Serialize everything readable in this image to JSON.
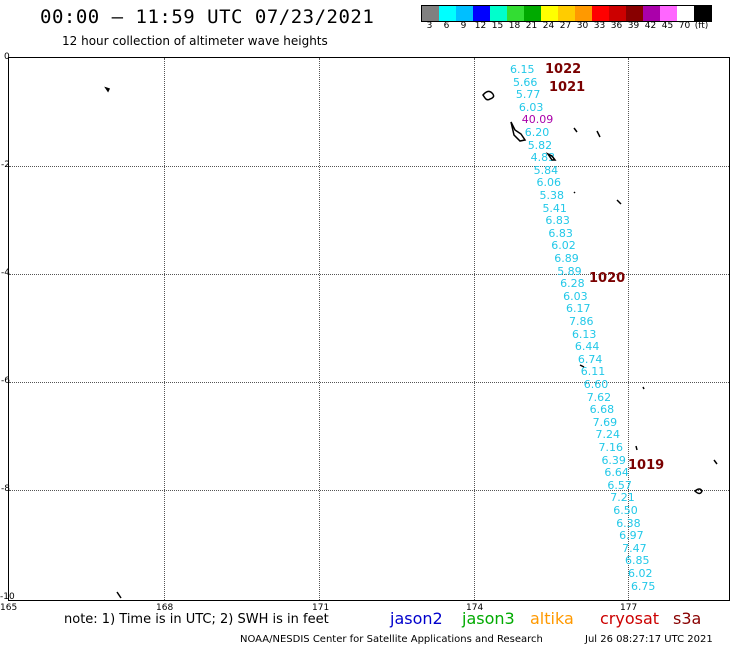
{
  "header": {
    "title": "00:00 – 11:59 UTC 07/23/2021",
    "subtitle": "12 hour collection of altimeter wave heights"
  },
  "legend": {
    "colors": [
      "#808080",
      "#00ffff",
      "#00bfff",
      "#0000ff",
      "#00ffcc",
      "#33dd33",
      "#00aa00",
      "#ffff00",
      "#ffcc00",
      "#ff9900",
      "#ff0000",
      "#cc0000",
      "#880000",
      "#aa00aa",
      "#ff66ff",
      "#ffffff",
      "#000000"
    ],
    "labels": [
      "3",
      "6",
      "9",
      "12",
      "15",
      "18",
      "21",
      "24",
      "27",
      "30",
      "33",
      "36",
      "39",
      "42",
      "45",
      "70",
      "(ft)"
    ]
  },
  "map": {
    "lat_labels": [
      "0",
      "-2",
      "-4",
      "-6",
      "-8",
      "-10"
    ],
    "lon_labels": [
      "165",
      "168",
      "171",
      "174",
      "177"
    ],
    "wave_heights": [
      "6.15",
      "5.66",
      "5.77",
      "6.03",
      "40.09",
      "6.20",
      "5.82",
      "4.83",
      "5.84",
      "6.06",
      "5.38",
      "5.41",
      "6.83",
      "6.83",
      "6.02",
      "6.89",
      "5.89",
      "6.28",
      "6.03",
      "6.17",
      "7.86",
      "6.13",
      "6.44",
      "6.74",
      "6.11",
      "6.60",
      "7.62",
      "6.68",
      "7.69",
      "7.24",
      "7.16",
      "6.39",
      "6.64",
      "6.57",
      "7.21",
      "6.50",
      "6.38",
      "6.97",
      "7.47",
      "6.85",
      "6.02",
      "6.75"
    ],
    "highlight_color": "#aa00aa",
    "wave_color": "#22c8e8",
    "pressure_labels": [
      "1022",
      "1021",
      "1020",
      "1019"
    ],
    "pressure_color": "#7a0000"
  },
  "note": "note: 1) Time is in UTC; 2) SWH is in feet",
  "satellites": [
    {
      "name": "jason2",
      "color": "#0000cc"
    },
    {
      "name": "jason3",
      "color": "#00aa00"
    },
    {
      "name": "altika",
      "color": "#ff9900"
    },
    {
      "name": "cryosat",
      "color": "#cc0000"
    },
    {
      "name": "s3a",
      "color": "#880000"
    }
  ],
  "footer": {
    "credit": "NOAA/NESDIS Center for Satellite Applications and Research",
    "timestamp": "Jul 26 08:27:17 UTC 2021"
  }
}
